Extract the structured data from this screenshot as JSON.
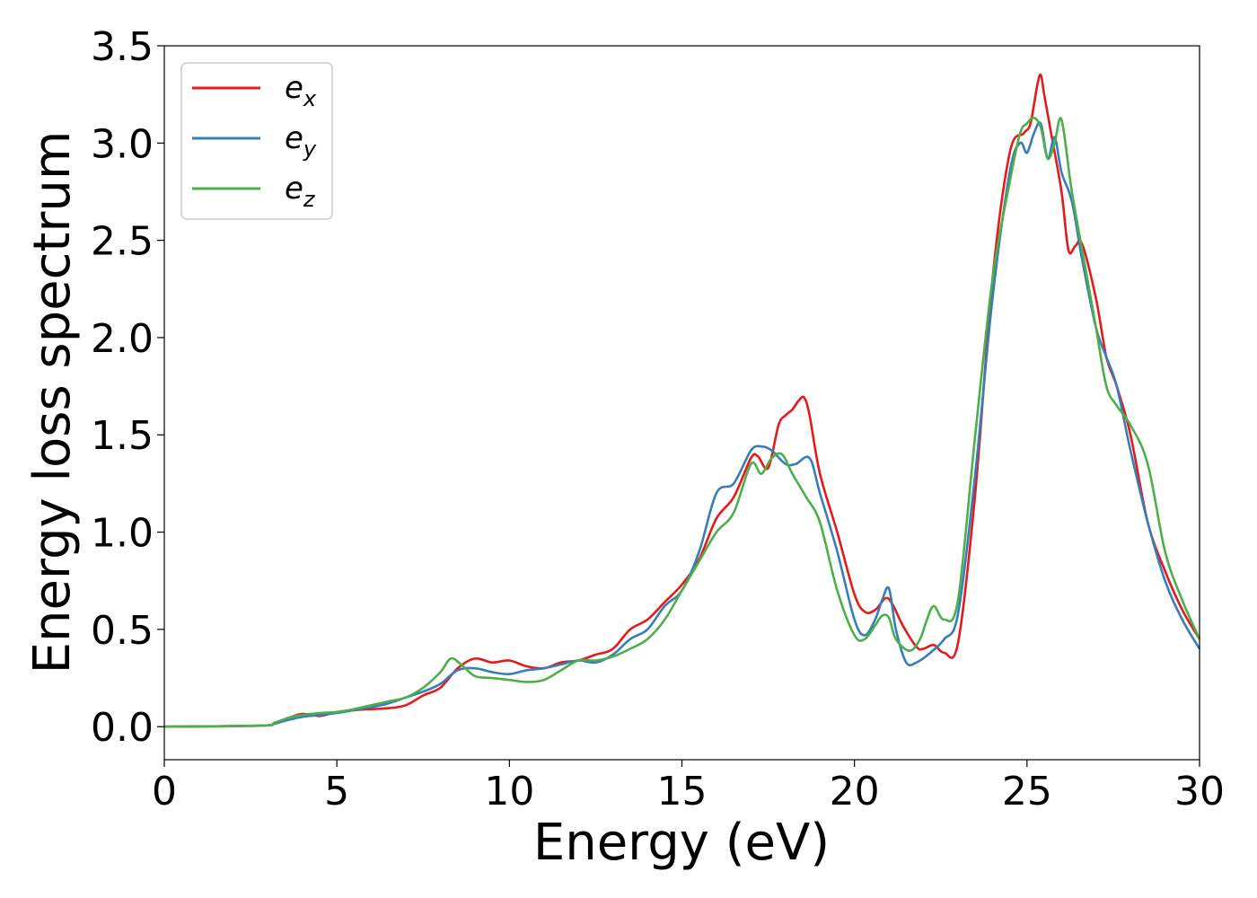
{
  "chart_data": {
    "type": "line",
    "title": "",
    "xlabel": "Energy (eV)",
    "ylabel": "Energy loss spectrum",
    "xlim": [
      0,
      30
    ],
    "ylim": [
      -0.17,
      3.5
    ],
    "xticks": [
      0,
      5,
      10,
      15,
      20,
      25,
      30
    ],
    "yticks": [
      0.0,
      0.5,
      1.0,
      1.5,
      2.0,
      2.5,
      3.0,
      3.5
    ],
    "xtick_labels": [
      "0",
      "5",
      "10",
      "15",
      "20",
      "25",
      "30"
    ],
    "ytick_labels": [
      "0.0",
      "0.5",
      "1.0",
      "1.5",
      "2.0",
      "2.5",
      "3.0",
      "3.5"
    ],
    "grid": false,
    "legend_position": "top-left",
    "series": [
      {
        "name": "e_x",
        "label_main": "e",
        "label_sub": "x",
        "color": "#e41a1c",
        "x": [
          0,
          2.8,
          3.2,
          3.6,
          4.0,
          4.5,
          5.0,
          5.5,
          6.0,
          6.5,
          7.0,
          7.5,
          8.0,
          8.5,
          9.0,
          9.5,
          10.0,
          10.5,
          11.0,
          11.5,
          12.0,
          12.5,
          13.0,
          13.5,
          14.0,
          14.5,
          15.0,
          15.5,
          16.0,
          16.5,
          17.0,
          17.2,
          17.5,
          17.8,
          18.0,
          18.2,
          18.4,
          18.55,
          18.7,
          19.0,
          19.5,
          20.0,
          20.3,
          20.6,
          20.9,
          21.1,
          21.4,
          21.8,
          22.0,
          22.3,
          22.6,
          23.0,
          23.5,
          24.0,
          24.5,
          24.9,
          25.1,
          25.3,
          25.4,
          25.5,
          25.7,
          26.0,
          26.2,
          26.4,
          26.6,
          27.0,
          27.3,
          27.6,
          28.0,
          28.5,
          29.0,
          29.5,
          30.0
        ],
        "y": [
          0,
          0.005,
          0.02,
          0.045,
          0.065,
          0.055,
          0.075,
          0.085,
          0.09,
          0.095,
          0.11,
          0.16,
          0.2,
          0.3,
          0.35,
          0.33,
          0.34,
          0.31,
          0.3,
          0.33,
          0.34,
          0.37,
          0.4,
          0.5,
          0.55,
          0.64,
          0.73,
          0.86,
          1.07,
          1.18,
          1.38,
          1.39,
          1.33,
          1.55,
          1.6,
          1.63,
          1.68,
          1.69,
          1.6,
          1.3,
          1.0,
          0.68,
          0.59,
          0.6,
          0.66,
          0.63,
          0.52,
          0.41,
          0.4,
          0.42,
          0.38,
          0.43,
          1.2,
          2.3,
          2.95,
          3.05,
          3.1,
          3.3,
          3.35,
          3.25,
          3.05,
          2.75,
          2.45,
          2.47,
          2.48,
          2.2,
          1.9,
          1.75,
          1.5,
          1.05,
          0.8,
          0.6,
          0.45
        ]
      },
      {
        "name": "e_y",
        "label_main": "e",
        "label_sub": "y",
        "color": "#377eb8",
        "x": [
          0,
          2.8,
          3.2,
          3.6,
          4.0,
          4.5,
          5.0,
          5.5,
          6.0,
          6.5,
          7.0,
          7.5,
          8.0,
          8.5,
          9.0,
          9.5,
          10.0,
          10.5,
          11.0,
          11.5,
          12.0,
          12.5,
          13.0,
          13.5,
          14.0,
          14.5,
          15.0,
          15.5,
          16.0,
          16.5,
          17.0,
          17.3,
          17.6,
          18.0,
          18.3,
          18.7,
          19.0,
          19.5,
          20.0,
          20.3,
          20.6,
          20.8,
          21.0,
          21.2,
          21.5,
          21.8,
          22.2,
          22.6,
          23.0,
          23.5,
          24.0,
          24.5,
          24.8,
          25.0,
          25.2,
          25.4,
          25.6,
          25.8,
          26.0,
          26.3,
          26.6,
          27.0,
          27.3,
          27.6,
          28.0,
          28.5,
          29.0,
          29.5,
          30.0
        ],
        "y": [
          0,
          0.005,
          0.015,
          0.035,
          0.05,
          0.06,
          0.07,
          0.085,
          0.1,
          0.12,
          0.15,
          0.18,
          0.22,
          0.29,
          0.3,
          0.28,
          0.27,
          0.29,
          0.3,
          0.32,
          0.34,
          0.33,
          0.37,
          0.45,
          0.5,
          0.62,
          0.7,
          0.9,
          1.2,
          1.25,
          1.42,
          1.44,
          1.42,
          1.35,
          1.35,
          1.38,
          1.2,
          0.9,
          0.55,
          0.47,
          0.55,
          0.65,
          0.71,
          0.5,
          0.33,
          0.33,
          0.38,
          0.45,
          0.58,
          1.3,
          2.2,
          2.85,
          3.0,
          2.95,
          3.05,
          3.1,
          2.92,
          3.03,
          2.85,
          2.7,
          2.4,
          2.05,
          1.9,
          1.75,
          1.42,
          1.05,
          0.75,
          0.55,
          0.4
        ]
      },
      {
        "name": "e_z",
        "label_main": "e",
        "label_sub": "z",
        "color": "#4daf4a",
        "x": [
          0,
          2.8,
          3.2,
          3.6,
          4.0,
          4.5,
          5.0,
          5.5,
          6.0,
          6.5,
          7.0,
          7.5,
          8.0,
          8.3,
          8.6,
          9.0,
          9.5,
          10.0,
          10.5,
          11.0,
          11.5,
          12.0,
          12.5,
          13.0,
          13.5,
          14.0,
          14.5,
          15.0,
          15.5,
          16.0,
          16.5,
          17.0,
          17.3,
          17.6,
          17.9,
          18.2,
          18.6,
          19.0,
          19.5,
          20.0,
          20.3,
          20.6,
          20.8,
          21.0,
          21.2,
          21.6,
          21.9,
          22.1,
          22.3,
          22.6,
          23.0,
          23.5,
          24.0,
          24.5,
          24.8,
          25.0,
          25.2,
          25.4,
          25.6,
          25.8,
          26.0,
          26.3,
          26.7,
          27.0,
          27.3,
          27.6,
          28.0,
          28.5,
          29.0,
          29.5,
          30.0
        ],
        "y": [
          0,
          0.005,
          0.02,
          0.045,
          0.06,
          0.07,
          0.075,
          0.09,
          0.11,
          0.13,
          0.15,
          0.2,
          0.28,
          0.35,
          0.32,
          0.26,
          0.25,
          0.24,
          0.23,
          0.24,
          0.29,
          0.34,
          0.34,
          0.36,
          0.4,
          0.45,
          0.55,
          0.7,
          0.85,
          1.0,
          1.1,
          1.35,
          1.3,
          1.38,
          1.4,
          1.3,
          1.18,
          1.05,
          0.7,
          0.47,
          0.45,
          0.52,
          0.57,
          0.56,
          0.45,
          0.39,
          0.45,
          0.55,
          0.62,
          0.55,
          0.65,
          1.5,
          2.3,
          2.8,
          3.05,
          3.1,
          3.13,
          3.08,
          2.92,
          3.0,
          3.12,
          2.75,
          2.35,
          2.05,
          1.75,
          1.65,
          1.55,
          1.35,
          0.9,
          0.65,
          0.45
        ]
      }
    ]
  }
}
